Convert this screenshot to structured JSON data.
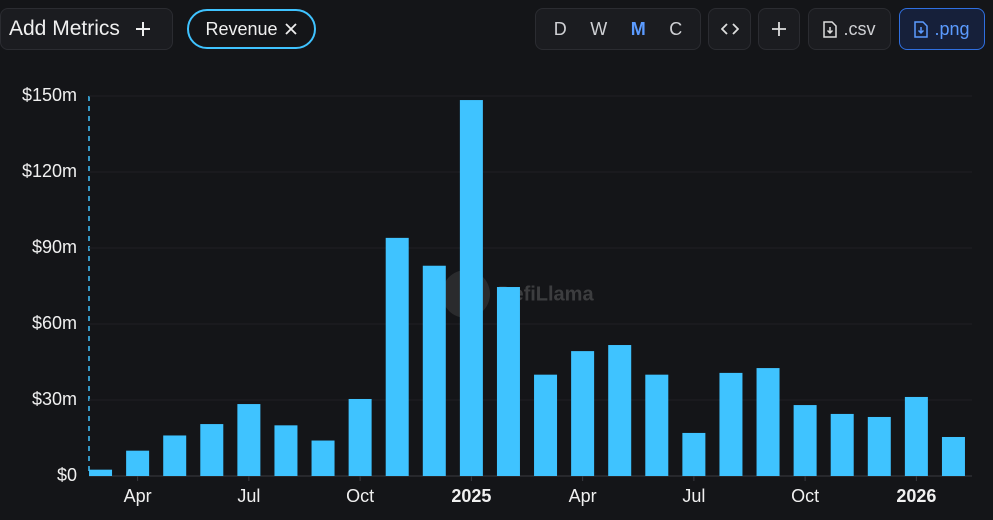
{
  "toolbar": {
    "add_metrics": "Add Metrics",
    "metric_chip": "Revenue",
    "intervals": [
      "D",
      "W",
      "M",
      "C"
    ],
    "active_interval": "M",
    "export_csv": ".csv",
    "export_png": ".png"
  },
  "watermark": "DefiLlama",
  "chart_data": {
    "type": "bar",
    "color": "#3fc3ff",
    "categories": [
      null,
      "Apr",
      null,
      null,
      "Jul",
      null,
      null,
      "Oct",
      null,
      null,
      "2025",
      null,
      null,
      "Apr",
      null,
      null,
      "Jul",
      null,
      null,
      "Oct",
      null,
      null,
      "2026",
      null
    ],
    "values": [
      2.5,
      10,
      16,
      20.5,
      28.4,
      20,
      14,
      30.4,
      94,
      83,
      148.4,
      74.6,
      40,
      49.3,
      51.7,
      40,
      17,
      40.7,
      42.6,
      28,
      24.5,
      23.3,
      31.2,
      15.4
    ],
    "ylim": [
      0,
      150
    ],
    "yticks": [
      {
        "value": 0,
        "label": "$0"
      },
      {
        "value": 30,
        "label": "$30m"
      },
      {
        "value": 60,
        "label": "$60m"
      },
      {
        "value": 90,
        "label": "$90m"
      },
      {
        "value": 120,
        "label": "$120m"
      },
      {
        "value": 150,
        "label": "$150m"
      }
    ],
    "grid": true
  }
}
